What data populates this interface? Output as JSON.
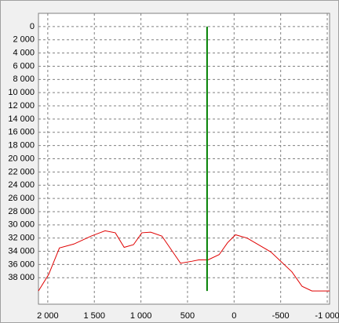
{
  "chart_data": {
    "type": "line",
    "x": [
      2100,
      1990,
      1875,
      1720,
      1535,
      1385,
      1275,
      1180,
      1080,
      990,
      895,
      775,
      575,
      450,
      380,
      280,
      160,
      70,
      -15,
      -140,
      -395,
      -620,
      -730,
      -835,
      -1025
    ],
    "values": [
      40000,
      37500,
      33500,
      32900,
      31700,
      30900,
      31200,
      33400,
      33000,
      31200,
      31100,
      31700,
      35800,
      35500,
      35300,
      35300,
      34500,
      32700,
      31500,
      32000,
      34100,
      37100,
      39300,
      40000,
      40000
    ],
    "color": "#e00000",
    "vline": {
      "x": 290,
      "ymin": 0,
      "ymax": 40000,
      "color": "#008000"
    },
    "xlim": [
      2100,
      -1025
    ],
    "ylim": [
      -2000,
      42000
    ],
    "xticks": [
      {
        "value": 2000,
        "label": "2 000"
      },
      {
        "value": 1500,
        "label": "1 500"
      },
      {
        "value": 1000,
        "label": "1 000"
      },
      500,
      0,
      -500,
      {
        "value": -1000,
        "label": "-1 000"
      }
    ],
    "yticks": [
      0,
      {
        "value": 2000,
        "label": "2 000"
      },
      {
        "value": 4000,
        "label": "4 000"
      },
      {
        "value": 6000,
        "label": "6 000"
      },
      {
        "value": 8000,
        "label": "8 000"
      },
      {
        "value": 10000,
        "label": "10 000"
      },
      {
        "value": 12000,
        "label": "12 000"
      },
      {
        "value": 14000,
        "label": "14 000"
      },
      {
        "value": 16000,
        "label": "16 000"
      },
      {
        "value": 18000,
        "label": "18 000"
      },
      {
        "value": 20000,
        "label": "20 000"
      },
      {
        "value": 22000,
        "label": "22 000"
      },
      {
        "value": 24000,
        "label": "24 000"
      },
      {
        "value": 26000,
        "label": "26 000"
      },
      {
        "value": 28000,
        "label": "28 000"
      },
      {
        "value": 30000,
        "label": "30 000"
      },
      {
        "value": 32000,
        "label": "32 000"
      },
      {
        "value": 34000,
        "label": "34 000"
      },
      {
        "value": 36000,
        "label": "36 000"
      },
      {
        "value": 38000,
        "label": "38 000"
      }
    ],
    "grid": true
  }
}
